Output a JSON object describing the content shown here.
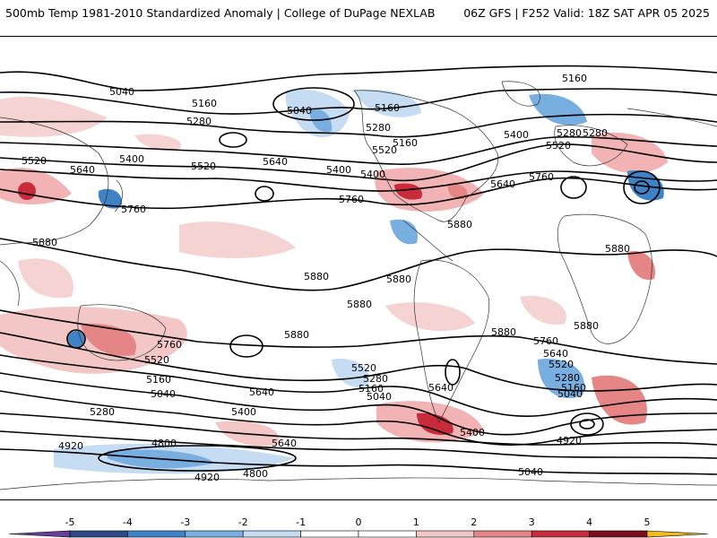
{
  "header": {
    "title_left": "500mb Temp 1981-2010 Standardized Anomaly | College of DuPage NEXLAB",
    "title_right": "06Z GFS | F252 Valid: 18Z SAT APR 05 2025"
  },
  "map": {
    "contour_labels": [
      "5160",
      "5040",
      "5160",
      "5280",
      "5040",
      "5160",
      "5280",
      "5520",
      "5400",
      "5520",
      "5640",
      "5400",
      "5520",
      "5640",
      "5400",
      "5760",
      "5520",
      "5280",
      "5400",
      "5160",
      "5280",
      "5760",
      "5640",
      "5880",
      "5880",
      "5880",
      "5880",
      "5880",
      "5880",
      "5880",
      "5880",
      "5880",
      "5760",
      "5760",
      "5520",
      "5160",
      "5040",
      "5280",
      "5640",
      "5400",
      "5520",
      "5280",
      "5160",
      "5040",
      "5640",
      "5400",
      "5760",
      "5640",
      "5520",
      "5280",
      "5160",
      "5040",
      "4920",
      "4800",
      "4920",
      "4800",
      "4920",
      "5040",
      "5640"
    ]
  },
  "colorbar": {
    "ticks": [
      "-5",
      "-4",
      "-3",
      "-2",
      "-1",
      "0",
      "1",
      "2",
      "3",
      "4",
      "5"
    ],
    "colors": [
      "#6a3d9a",
      "#2c4a86",
      "#3f83c6",
      "#78aee0",
      "#c6dcf2",
      "#ffffff",
      "#ffffff",
      "#f4c7c7",
      "#e58585",
      "#c82c3a",
      "#7a0e1c",
      "#f3b921"
    ]
  }
}
